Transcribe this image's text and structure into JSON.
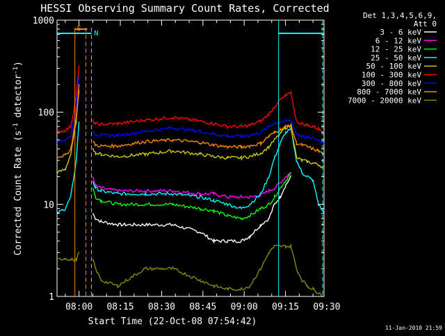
{
  "chart_data": {
    "type": "line",
    "title": "HESSI Observing Summary Count Rates, Corrected",
    "xlabel": "Start Time (22-Oct-08 07:54:42)",
    "ylabel_main": "Corrected Count Rate (s",
    "ylabel_sup1": "-1",
    "ylabel_mid": " detector",
    "ylabel_sup2": "-1",
    "ylabel_end": ")",
    "y_scale": "log",
    "ylim": [
      1,
      1000
    ],
    "xlim_min": [
      -2,
      95
    ],
    "x_ticks": [
      {
        "v": 6,
        "label": "08:00"
      },
      {
        "v": 21,
        "label": "08:15"
      },
      {
        "v": 36,
        "label": "08:30"
      },
      {
        "v": 51,
        "label": "08:45"
      },
      {
        "v": 66,
        "label": "09:00"
      },
      {
        "v": 81,
        "label": "09:15"
      },
      {
        "v": 96,
        "label": "09:30"
      }
    ],
    "y_ticks": [
      {
        "v": 1,
        "label": "1"
      },
      {
        "v": 10,
        "label": "10"
      },
      {
        "v": 100,
        "label": "100"
      },
      {
        "v": 1000,
        "label": "1000"
      }
    ],
    "legend": {
      "header1": "Det 1,3,4,5,6,9,",
      "header2": "Att 0",
      "placement": "right"
    },
    "series": [
      {
        "name": "3 - 6 keV",
        "color": "#ffffff",
        "x": [
          -2,
          1,
          3,
          5,
          6,
          8,
          9,
          10,
          11,
          12,
          14,
          20,
          30,
          40,
          50,
          55,
          60,
          65,
          68,
          72,
          75,
          77,
          79,
          81,
          83,
          85,
          87,
          89,
          91,
          93,
          95
        ],
        "y": [
          null,
          null,
          null,
          null,
          null,
          null,
          null,
          null,
          8,
          7,
          6.5,
          6,
          6,
          6,
          5,
          4,
          4,
          4,
          4.5,
          6,
          7,
          10,
          12,
          16,
          20,
          null,
          null,
          null,
          null,
          null,
          null
        ]
      },
      {
        "name": "6 - 12 keV",
        "color": "#ff00ff",
        "x": [
          -2,
          1,
          3,
          5,
          6,
          8,
          9,
          10,
          11,
          12,
          14,
          20,
          30,
          40,
          50,
          55,
          60,
          65,
          68,
          72,
          75,
          77,
          79,
          81,
          83,
          85,
          87,
          89,
          91,
          93,
          95
        ],
        "y": [
          null,
          null,
          null,
          null,
          null,
          null,
          null,
          null,
          20,
          16,
          15,
          14,
          14,
          14,
          13,
          13,
          12,
          12,
          12,
          12.5,
          14,
          15,
          17,
          20,
          22,
          null,
          null,
          null,
          null,
          null,
          null
        ]
      },
      {
        "name": "12 - 25 keV",
        "color": "#00ff00",
        "x": [
          -2,
          1,
          3,
          5,
          6,
          8,
          9,
          10,
          11,
          12,
          14,
          20,
          30,
          40,
          50,
          55,
          60,
          65,
          68,
          72,
          75,
          77,
          79,
          81,
          83,
          85,
          87,
          89,
          91,
          93,
          95
        ],
        "y": [
          null,
          null,
          null,
          null,
          null,
          null,
          null,
          null,
          15,
          12,
          11,
          10,
          10,
          10,
          9,
          8.5,
          7.5,
          7,
          7.5,
          9,
          10,
          12,
          15,
          18,
          22,
          null,
          null,
          null,
          null,
          null,
          null
        ]
      },
      {
        "name": "25 - 50 keV",
        "color": "#00ffff",
        "x": [
          -2,
          1,
          3,
          5,
          6,
          8,
          9,
          10,
          11,
          12,
          14,
          20,
          30,
          40,
          50,
          55,
          60,
          65,
          68,
          72,
          75,
          77,
          79,
          81,
          83,
          85,
          87,
          89,
          91,
          93,
          95
        ],
        "y": [
          8,
          9,
          12,
          30,
          80,
          null,
          null,
          null,
          18,
          15,
          14,
          13,
          13,
          13,
          12,
          11,
          10,
          9,
          10,
          13,
          20,
          32,
          45,
          60,
          65,
          30,
          22,
          20,
          18,
          10,
          8
        ]
      },
      {
        "name": "50 - 100 keV",
        "color": "#cccc00",
        "x": [
          -2,
          1,
          3,
          5,
          6,
          8,
          9,
          10,
          11,
          12,
          14,
          20,
          30,
          40,
          50,
          55,
          60,
          65,
          68,
          72,
          75,
          77,
          79,
          81,
          83,
          85,
          87,
          89,
          91,
          93,
          95
        ],
        "y": [
          22,
          24,
          35,
          80,
          180,
          null,
          null,
          null,
          42,
          36,
          35,
          33,
          35,
          38,
          35,
          33,
          32,
          32,
          33,
          36,
          42,
          50,
          58,
          68,
          72,
          32,
          30,
          29,
          28,
          27,
          25
        ]
      },
      {
        "name": "100 - 300 keV",
        "color": "#ff0000",
        "x": [
          -2,
          1,
          3,
          5,
          6,
          8,
          9,
          10,
          11,
          12,
          14,
          20,
          30,
          40,
          50,
          55,
          60,
          65,
          68,
          72,
          75,
          77,
          79,
          81,
          83,
          85,
          87,
          89,
          91,
          93,
          95
        ],
        "y": [
          62,
          63,
          70,
          150,
          320,
          null,
          null,
          null,
          80,
          75,
          74,
          75,
          82,
          88,
          80,
          75,
          70,
          70,
          72,
          80,
          95,
          115,
          135,
          150,
          160,
          80,
          75,
          72,
          70,
          66,
          62
        ]
      },
      {
        "name": "300 - 800 keV",
        "color": "#0000ff",
        "x": [
          -2,
          1,
          3,
          5,
          6,
          8,
          9,
          10,
          11,
          12,
          14,
          20,
          30,
          40,
          50,
          55,
          60,
          65,
          68,
          72,
          75,
          77,
          79,
          81,
          83,
          85,
          87,
          89,
          91,
          93,
          95
        ],
        "y": [
          48,
          50,
          55,
          120,
          250,
          null,
          null,
          null,
          62,
          58,
          56,
          56,
          62,
          68,
          62,
          58,
          55,
          55,
          56,
          60,
          70,
          76,
          78,
          80,
          80,
          58,
          55,
          53,
          52,
          50,
          46
        ]
      },
      {
        "name": "800 - 7000 keV",
        "color": "#ff8800",
        "x": [
          -2,
          1,
          3,
          5,
          6,
          8,
          9,
          10,
          11,
          12,
          14,
          20,
          30,
          40,
          50,
          55,
          60,
          65,
          68,
          72,
          75,
          77,
          79,
          81,
          83,
          85,
          87,
          89,
          91,
          93,
          95
        ],
        "y": [
          33,
          34,
          40,
          90,
          200,
          null,
          null,
          null,
          48,
          44,
          43,
          43,
          48,
          50,
          47,
          44,
          42,
          42,
          43,
          46,
          55,
          60,
          65,
          70,
          72,
          46,
          44,
          42,
          40,
          38,
          35
        ]
      },
      {
        "name": "7000 - 20000 keV",
        "color": "#888800",
        "x": [
          -2,
          1,
          3,
          5,
          6,
          8,
          9,
          10,
          11,
          12,
          14,
          20,
          30,
          40,
          50,
          55,
          60,
          65,
          68,
          72,
          75,
          77,
          79,
          81,
          83,
          85,
          87,
          89,
          91,
          93,
          95
        ],
        "y": [
          2.5,
          2.6,
          2.5,
          2.5,
          3,
          null,
          null,
          null,
          2.5,
          2,
          1.5,
          1.3,
          2,
          2,
          1.5,
          1.3,
          1.2,
          1.2,
          1.3,
          2,
          3,
          3.5,
          3.5,
          3.5,
          3.5,
          2,
          1.5,
          1.3,
          1.2,
          1.1,
          1
        ]
      }
    ],
    "markers": [
      {
        "label": "S",
        "color": "#ff8800"
      },
      {
        "label": "N",
        "color": "#00ffff"
      }
    ],
    "footer_date": "11-Jan-2010 21:59"
  }
}
